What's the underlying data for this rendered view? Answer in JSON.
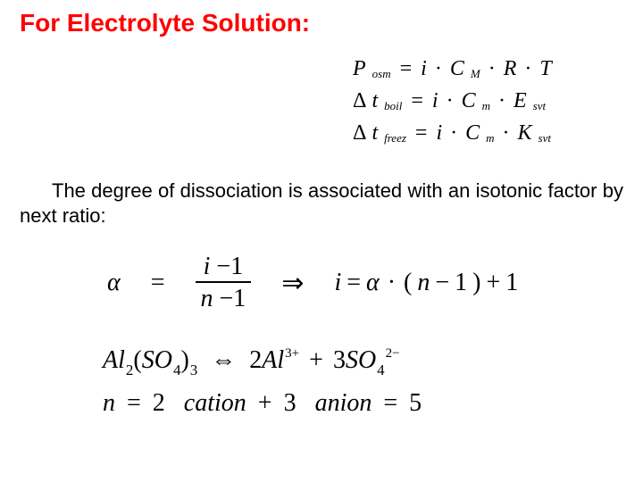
{
  "title": "For Electrolyte Solution:",
  "body": "The degree of dissociation is associated with an isotonic factor by next ratio:",
  "colors": {
    "title_color": "#ff0000",
    "text_color": "#000000",
    "background": "#ffffff"
  },
  "typography": {
    "title_fontsize": 28,
    "title_weight": "bold",
    "body_fontsize": 22,
    "equation_font": "Times New Roman",
    "eq_top_fontsize": 24,
    "eq_mid_fontsize": 28,
    "eq_bot_fontsize": 28
  },
  "eq_top": {
    "row1": {
      "lhs_sym": "P",
      "lhs_sub": "osm",
      "eq": "=",
      "t1": "i",
      "dot": "·",
      "t2": "C",
      "t2_sub": "M",
      "t3": "R",
      "t4": "T"
    },
    "row2": {
      "delta": "Δ",
      "lhs_sym": "t",
      "lhs_sub": "boil",
      "eq": "=",
      "t1": "i",
      "dot": "·",
      "t2": "C",
      "t2_sub": "m",
      "t3": "E",
      "t3_sub": "svt"
    },
    "row3": {
      "delta": "Δ",
      "lhs_sym": "t",
      "lhs_sub": "freez",
      "eq": "=",
      "t1": "i",
      "dot": "·",
      "t2": "C",
      "t2_sub": "m",
      "t3": "K",
      "t3_sub": "svt"
    }
  },
  "eq_mid": {
    "alpha": "α",
    "eq": "=",
    "num_l": "i",
    "num_minus": "−",
    "num_r": "1",
    "den_l": "n",
    "den_minus": "−",
    "den_r": "1",
    "implies": "⇒",
    "rhs_i": "i",
    "rhs_eq": "=",
    "rhs_alpha": "α",
    "rhs_dot": "·",
    "rhs_open": "(",
    "rhs_n": "n",
    "rhs_minus": "−",
    "rhs_one": "1",
    "rhs_close": ")",
    "rhs_plus": "+",
    "rhs_one2": "1"
  },
  "eq_bot": {
    "line1": {
      "Al": "Al",
      "al_sub": "2",
      "open": "(",
      "SO": "SO",
      "so_sub": "4",
      "close": ")",
      "outer_sub": "3",
      "darrow": "⇔",
      "coef2": "2",
      "Al2": "Al",
      "cat_charge": "3+",
      "plus": "+",
      "coef3": "3",
      "SO2": "SO",
      "so4_sub": "4",
      "an_charge": "2−"
    },
    "line2": {
      "n": "n",
      "eq": "=",
      "two": "2",
      "sp": " ",
      "cation": "cation",
      "plus": "+",
      "three": "3",
      "anion": "anion",
      "eq2": "=",
      "five": "5"
    }
  }
}
